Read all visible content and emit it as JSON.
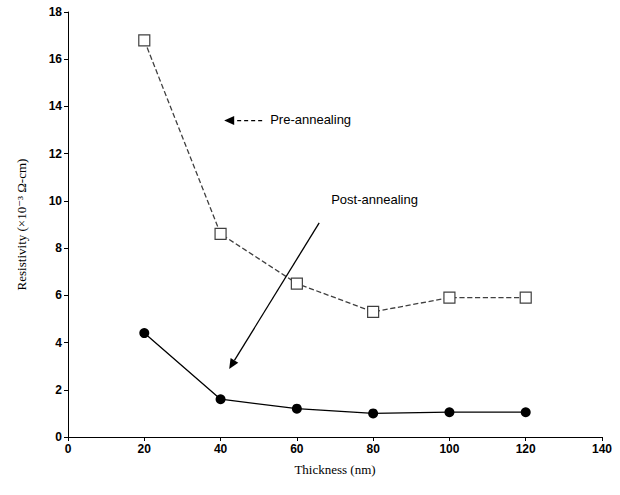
{
  "chart_data": {
    "type": "line",
    "x_label": "Thickness (nm)",
    "y_label": "Resistivity (×10⁻³ Ω-cm)",
    "xlim": [
      0,
      140
    ],
    "xticks": [
      0,
      20,
      40,
      60,
      80,
      100,
      120,
      140
    ],
    "ylim": [
      0,
      18
    ],
    "yticks": [
      0,
      2,
      4,
      6,
      8,
      10,
      12,
      14,
      16,
      18
    ],
    "grid": false,
    "series": [
      {
        "color": "#404040",
        "marker": "open_square",
        "line_style": "dashed",
        "x": [
          20,
          40,
          60,
          80,
          100,
          120
        ],
        "values": [
          16.8,
          8.6,
          6.5,
          5.3,
          5.9,
          5.9
        ]
      },
      {
        "color": "#000000",
        "marker": "circle",
        "line_style": "solid",
        "x": [
          20,
          40,
          60,
          80,
          100,
          120
        ],
        "values": [
          4.4,
          1.6,
          1.2,
          1.0,
          1.05,
          1.05
        ]
      }
    ],
    "annotations": [
      {
        "text": "Pre-annealing",
        "x": 53,
        "y": 13.4,
        "line_style": "dashed"
      },
      {
        "text": "Post-annealing",
        "x": 69,
        "y": 10.0,
        "line_style": "solid"
      }
    ]
  }
}
